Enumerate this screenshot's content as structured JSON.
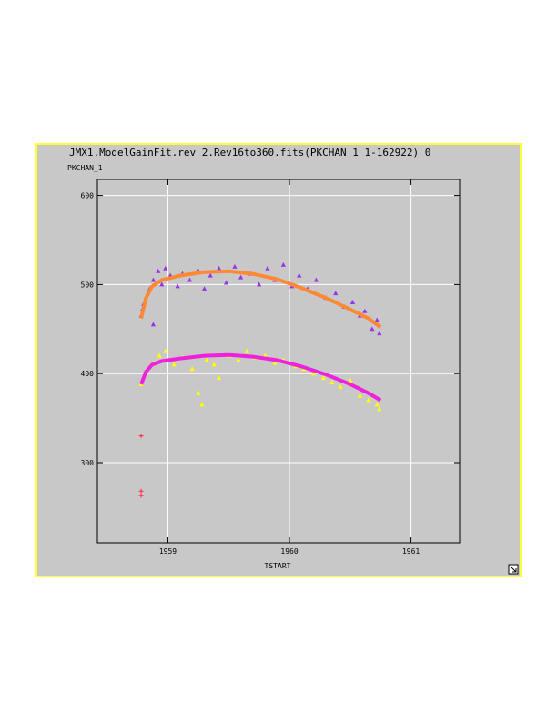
{
  "chart_data": {
    "type": "scatter",
    "title": "JMX1.ModelGainFit.rev_2.Rev16to360.fits(PKCHAN_1_1-162922)_0",
    "y_label": "PKCHAN_1",
    "x_label": "TSTART",
    "xlim": [
      1958.42,
      1961.4
    ],
    "xticks": [
      1959,
      1960,
      1961
    ],
    "ylim": [
      210,
      618
    ],
    "yticks": [
      300,
      400,
      500,
      600
    ],
    "grid": true,
    "series": [
      {
        "color": "#9933ee",
        "mode": "markers",
        "marker": "triangle",
        "x": [
          1958.78,
          1958.79,
          1958.8,
          1958.85,
          1958.88,
          1958.88,
          1958.92,
          1958.95,
          1958.98,
          1959.02,
          1959.08,
          1959.12,
          1959.18,
          1959.25,
          1959.3,
          1959.35,
          1959.42,
          1959.48,
          1959.55,
          1959.6,
          1959.68,
          1959.75,
          1959.82,
          1959.88,
          1959.95,
          1960.02,
          1960.08,
          1960.15,
          1960.22,
          1960.3,
          1960.38,
          1960.45,
          1960.52,
          1960.58,
          1960.62,
          1960.68,
          1960.72,
          1960.74
        ],
        "values": [
          465,
          472,
          478,
          495,
          505,
          455,
          515,
          500,
          518,
          510,
          498,
          512,
          505,
          515,
          495,
          510,
          518,
          502,
          520,
          508,
          512,
          500,
          518,
          505,
          522,
          498,
          510,
          495,
          505,
          485,
          490,
          475,
          480,
          465,
          470,
          450,
          460,
          445
        ]
      },
      {
        "color": "#ffff00",
        "mode": "markers",
        "marker": "triangle",
        "x": [
          1958.78,
          1958.82,
          1958.88,
          1958.93,
          1958.98,
          1959.05,
          1959.12,
          1959.2,
          1959.25,
          1959.28,
          1959.32,
          1959.38,
          1959.42,
          1959.5,
          1959.58,
          1959.65,
          1959.72,
          1959.8,
          1959.88,
          1959.95,
          1960.05,
          1960.12,
          1960.2,
          1960.28,
          1960.35,
          1960.42,
          1960.5,
          1960.58,
          1960.65,
          1960.72,
          1960.74
        ],
        "values": [
          388,
          400,
          412,
          420,
          425,
          410,
          418,
          405,
          378,
          365,
          415,
          410,
          395,
          420,
          415,
          425,
          418,
          420,
          412,
          415,
          408,
          405,
          400,
          395,
          390,
          385,
          392,
          375,
          370,
          365,
          360
        ]
      },
      {
        "color": "#ff8833",
        "mode": "line",
        "x": [
          1958.78,
          1958.82,
          1958.87,
          1958.95,
          1959.1,
          1959.3,
          1959.5,
          1959.7,
          1959.9,
          1960.1,
          1960.3,
          1960.5,
          1960.65,
          1960.75
        ],
        "values": [
          462,
          485,
          498,
          505,
          510,
          514,
          515,
          512,
          506,
          496,
          485,
          472,
          462,
          452
        ]
      },
      {
        "color": "#ee22dd",
        "mode": "line",
        "x": [
          1958.78,
          1958.82,
          1958.87,
          1958.95,
          1959.1,
          1959.3,
          1959.5,
          1959.7,
          1959.9,
          1960.1,
          1960.3,
          1960.5,
          1960.65,
          1960.75
        ],
        "values": [
          388,
          402,
          410,
          414,
          417,
          420,
          421,
          419,
          415,
          408,
          399,
          388,
          378,
          370
        ]
      },
      {
        "color": "#ff2244",
        "mode": "markers",
        "marker": "plus",
        "x": [
          1958.78,
          1958.78,
          1958.78
        ],
        "values": [
          330,
          268,
          263
        ]
      }
    ]
  }
}
